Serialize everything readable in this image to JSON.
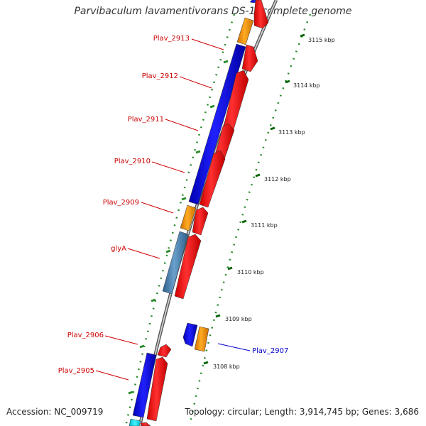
{
  "title": "Parvibaculum lavamentivorans DS-1, complete genome",
  "footer": {
    "accession": "Accession: NC_009719",
    "summary": "Topology: circular; Length: 3,914,745 bp; Genes: 3,686"
  },
  "scale_labels": [
    "3115 kbp",
    "3114 kbp",
    "3113 kbp",
    "3112 kbp",
    "3111 kbp",
    "3110 kbp",
    "3109 kbp",
    "3108 kbp"
  ],
  "gene_labels": [
    "Plav_2913",
    "Plav_2912",
    "Plav_2911",
    "Plav_2910",
    "Plav_2909",
    "glyA",
    "Plav_2906",
    "Plav_2905",
    "Plav_2907"
  ],
  "colors": {
    "backbone": "#888888",
    "cds_red": "#ff0000",
    "blue": "#0000ff",
    "orange": "#ff9900",
    "steelblue": "#4682b4",
    "cyan": "#00e5ff",
    "label_red": "#cc0000",
    "label_blue": "#0000cc",
    "tick_green": "#006400"
  }
}
